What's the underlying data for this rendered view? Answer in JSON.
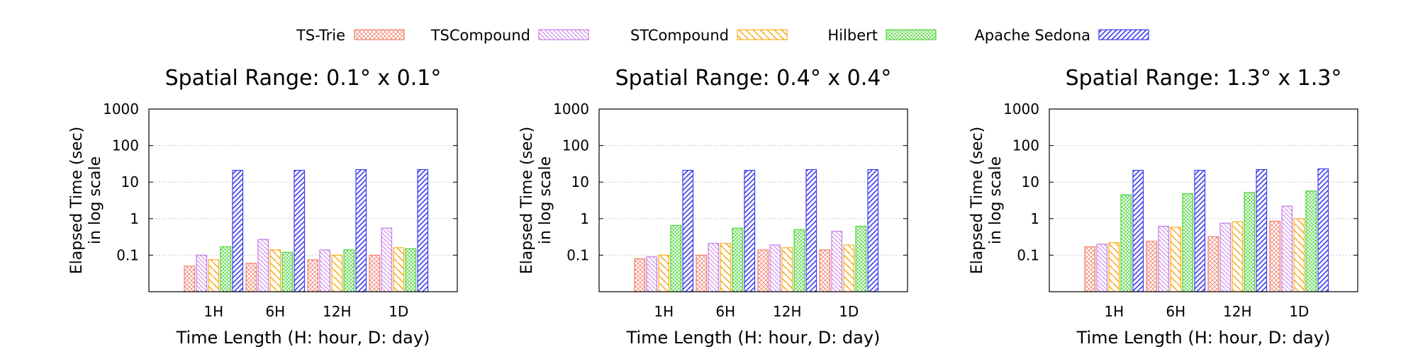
{
  "legend": [
    {
      "name": "TS-Trie",
      "color": "#f0806a",
      "pattern": "crosshatch"
    },
    {
      "name": "TSCompound",
      "color": "#c77ae6",
      "pattern": "diag-back"
    },
    {
      "name": "STCompound",
      "color": "#f9ad1b",
      "pattern": "diag-back-wide"
    },
    {
      "name": "Hilbert",
      "color": "#4fd43a",
      "pattern": "crosshatch-fine"
    },
    {
      "name": "Apache Sedona",
      "color": "#3b3bf0",
      "pattern": "diag-fwd"
    }
  ],
  "chart_data": [
    {
      "type": "bar",
      "title": "Spatial Range: 0.1° x 0.1°",
      "xlabel": "Time Length (H: hour, D: day)",
      "ylabel": [
        "Elapsed Time (sec)",
        "in log scale"
      ],
      "yscale": "log",
      "ylim": [
        0.01,
        1000
      ],
      "yticks": [
        "0.1",
        "1",
        "10",
        "100",
        "1000"
      ],
      "grid": "horizontal dotted",
      "categories": [
        "1H",
        "6H",
        "12H",
        "1D"
      ],
      "series": [
        {
          "name": "TS-Trie",
          "values": [
            0.05,
            0.06,
            0.075,
            0.1
          ]
        },
        {
          "name": "TSCompound",
          "values": [
            0.1,
            0.27,
            0.14,
            0.55
          ]
        },
        {
          "name": "STCompound",
          "values": [
            0.075,
            0.14,
            0.1,
            0.16
          ]
        },
        {
          "name": "Hilbert",
          "values": [
            0.17,
            0.12,
            0.14,
            0.15
          ]
        },
        {
          "name": "Apache Sedona",
          "values": [
            21,
            21,
            22,
            22
          ]
        }
      ]
    },
    {
      "type": "bar",
      "title": "Spatial Range: 0.4° x 0.4°",
      "xlabel": "Time Length (H: hour, D: day)",
      "ylabel": [
        "Elapsed Time (sec)",
        "in log scale"
      ],
      "yscale": "log",
      "ylim": [
        0.01,
        1000
      ],
      "yticks": [
        "0.1",
        "1",
        "10",
        "100",
        "1000"
      ],
      "grid": "horizontal dotted",
      "categories": [
        "1H",
        "6H",
        "12H",
        "1D"
      ],
      "series": [
        {
          "name": "TS-Trie",
          "values": [
            0.08,
            0.1,
            0.14,
            0.14
          ]
        },
        {
          "name": "TSCompound",
          "values": [
            0.09,
            0.21,
            0.19,
            0.45
          ]
        },
        {
          "name": "STCompound",
          "values": [
            0.1,
            0.21,
            0.16,
            0.19
          ]
        },
        {
          "name": "Hilbert",
          "values": [
            0.65,
            0.55,
            0.5,
            0.62
          ]
        },
        {
          "name": "Apache Sedona",
          "values": [
            21,
            21,
            22,
            22
          ]
        }
      ]
    },
    {
      "type": "bar",
      "title": "Spatial Range: 1.3° x 1.3°",
      "xlabel": "Time Length (H: hour, D: day)",
      "ylabel": [
        "Elapsed Time (sec)",
        "in log scale"
      ],
      "yscale": "log",
      "ylim": [
        0.01,
        1000
      ],
      "yticks": [
        "0.1",
        "1",
        "10",
        "100",
        "1000"
      ],
      "grid": "horizontal dotted",
      "categories": [
        "1H",
        "6H",
        "12H",
        "1D"
      ],
      "series": [
        {
          "name": "TS-Trie",
          "values": [
            0.17,
            0.24,
            0.32,
            0.85
          ]
        },
        {
          "name": "TSCompound",
          "values": [
            0.2,
            0.62,
            0.75,
            2.2
          ]
        },
        {
          "name": "STCompound",
          "values": [
            0.22,
            0.58,
            0.82,
            1.0
          ]
        },
        {
          "name": "Hilbert",
          "values": [
            4.5,
            4.8,
            5.2,
            5.7
          ]
        },
        {
          "name": "Apache Sedona",
          "values": [
            21,
            21,
            22,
            23
          ]
        }
      ]
    }
  ]
}
